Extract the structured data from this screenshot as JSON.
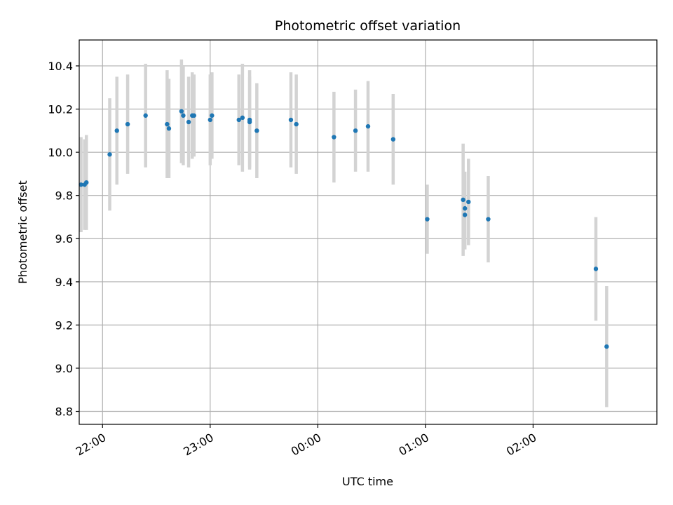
{
  "chart_data": {
    "type": "scatter",
    "title": "Photometric offset variation",
    "xlabel": "UTC time",
    "ylabel": "Photometric offset",
    "grid": true,
    "xlim": [
      "21:47",
      "03:09"
    ],
    "ylim": [
      8.74,
      10.52
    ],
    "x_ticks": [
      "22:00",
      "23:00",
      "00:00",
      "01:00",
      "02:00"
    ],
    "y_ticks": [
      "8.8",
      "9.0",
      "9.2",
      "9.4",
      "9.6",
      "9.8",
      "10.0",
      "10.2",
      "10.4"
    ],
    "colors": {
      "points": "#1f77b4",
      "errorbars": "#d3d3d3",
      "grid": "#b0b0b0"
    },
    "points": [
      {
        "x": "21:48",
        "y": 9.85,
        "err": 0.22
      },
      {
        "x": "21:50",
        "y": 9.85,
        "err": 0.21
      },
      {
        "x": "21:51",
        "y": 9.86,
        "err": 0.22
      },
      {
        "x": "22:04",
        "y": 9.99,
        "err": 0.26
      },
      {
        "x": "22:08",
        "y": 10.1,
        "err": 0.25
      },
      {
        "x": "22:14",
        "y": 10.13,
        "err": 0.23
      },
      {
        "x": "22:24",
        "y": 10.17,
        "err": 0.24
      },
      {
        "x": "22:36",
        "y": 10.13,
        "err": 0.25
      },
      {
        "x": "22:37",
        "y": 10.11,
        "err": 0.23
      },
      {
        "x": "22:44",
        "y": 10.19,
        "err": 0.24
      },
      {
        "x": "22:45",
        "y": 10.17,
        "err": 0.23
      },
      {
        "x": "22:48",
        "y": 10.14,
        "err": 0.21
      },
      {
        "x": "22:50",
        "y": 10.17,
        "err": 0.2
      },
      {
        "x": "22:51",
        "y": 10.17,
        "err": 0.19
      },
      {
        "x": "23:00",
        "y": 10.15,
        "err": 0.21
      },
      {
        "x": "23:01",
        "y": 10.17,
        "err": 0.2
      },
      {
        "x": "23:16",
        "y": 10.15,
        "err": 0.21
      },
      {
        "x": "23:18",
        "y": 10.16,
        "err": 0.25
      },
      {
        "x": "23:22",
        "y": 10.15,
        "err": 0.23
      },
      {
        "x": "23:22",
        "y": 10.14,
        "err": 0.21
      },
      {
        "x": "23:26",
        "y": 10.1,
        "err": 0.22
      },
      {
        "x": "23:45",
        "y": 10.15,
        "err": 0.22
      },
      {
        "x": "23:48",
        "y": 10.13,
        "err": 0.23
      },
      {
        "x": "00:09",
        "y": 10.07,
        "err": 0.21
      },
      {
        "x": "00:21",
        "y": 10.1,
        "err": 0.19
      },
      {
        "x": "00:28",
        "y": 10.12,
        "err": 0.21
      },
      {
        "x": "00:42",
        "y": 10.06,
        "err": 0.21
      },
      {
        "x": "01:01",
        "y": 9.69,
        "err": 0.16
      },
      {
        "x": "01:21",
        "y": 9.78,
        "err": 0.26
      },
      {
        "x": "01:22",
        "y": 9.74,
        "err": 0.17
      },
      {
        "x": "01:22",
        "y": 9.71,
        "err": 0.16
      },
      {
        "x": "01:24",
        "y": 9.77,
        "err": 0.2
      },
      {
        "x": "01:35",
        "y": 9.69,
        "err": 0.2
      },
      {
        "x": "02:35",
        "y": 9.46,
        "err": 0.24
      },
      {
        "x": "02:41",
        "y": 9.1,
        "err": 0.28
      }
    ]
  }
}
